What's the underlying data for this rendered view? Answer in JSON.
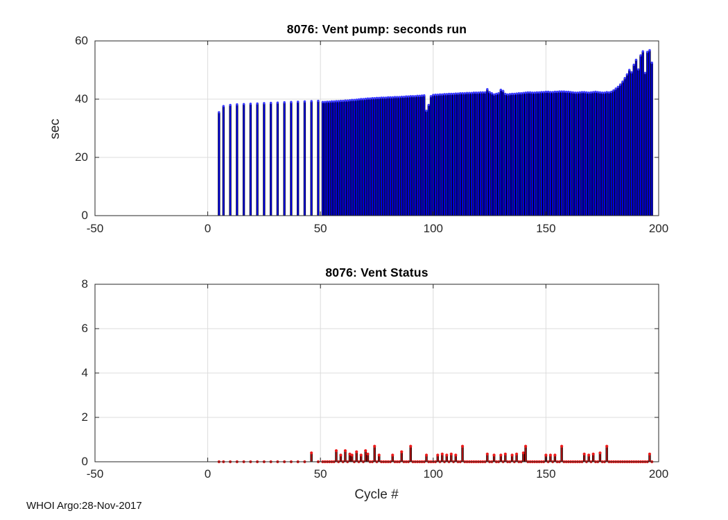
{
  "figure": {
    "background": "#ffffff",
    "footer": "WHOI Argo:28-Nov-2017"
  },
  "colors": {
    "axis": "#262626",
    "grid": "#dcdcdc",
    "tick_text": "#262626",
    "title_text": "#000000",
    "bar_blue": "#0000e0",
    "bar_edge": "#000000",
    "bar_marker_blue": "#3c3cff",
    "stem_fill": "#b01010",
    "stem_edge": "#000000",
    "stem_marker_red": "#ee1c1c"
  },
  "chart_data": [
    {
      "type": "bar",
      "title": "8076: Vent pump: seconds run",
      "xlabel": "",
      "ylabel": "sec",
      "xlim": [
        -50,
        200
      ],
      "ylim": [
        0,
        60
      ],
      "xticks": [
        -50,
        0,
        50,
        100,
        150,
        200
      ],
      "yticks": [
        0,
        20,
        40,
        60
      ],
      "grid": true,
      "legend": "none",
      "bar_color": "#0000e0",
      "bar_edge_color": "#000000",
      "marker_color": "#3c3cff",
      "x": [
        5,
        7,
        10,
        13,
        16,
        19,
        22,
        25,
        28,
        31,
        34,
        37,
        40,
        43,
        46,
        49,
        51,
        52,
        53,
        54,
        55,
        56,
        57,
        58,
        59,
        60,
        61,
        62,
        63,
        64,
        65,
        66,
        67,
        68,
        69,
        70,
        71,
        72,
        73,
        74,
        75,
        76,
        77,
        78,
        79,
        80,
        81,
        82,
        83,
        84,
        85,
        86,
        87,
        88,
        89,
        90,
        91,
        92,
        93,
        94,
        95,
        96,
        97,
        98,
        99,
        100,
        101,
        102,
        103,
        104,
        105,
        106,
        107,
        108,
        109,
        110,
        111,
        112,
        113,
        114,
        115,
        116,
        117,
        118,
        119,
        120,
        121,
        122,
        123,
        124,
        125,
        126,
        127,
        128,
        129,
        130,
        131,
        132,
        133,
        134,
        135,
        136,
        137,
        138,
        139,
        140,
        141,
        142,
        143,
        144,
        145,
        146,
        147,
        148,
        149,
        150,
        151,
        152,
        153,
        154,
        155,
        156,
        157,
        158,
        159,
        160,
        161,
        162,
        163,
        164,
        165,
        166,
        167,
        168,
        169,
        170,
        171,
        172,
        173,
        174,
        175,
        176,
        177,
        178,
        179,
        180,
        181,
        182,
        183,
        184,
        185,
        186,
        187,
        188,
        189,
        190,
        191,
        192,
        193,
        194,
        195,
        196,
        197
      ],
      "values": [
        35.5,
        37.6,
        38.0,
        38.2,
        38.3,
        38.4,
        38.5,
        38.6,
        38.7,
        38.8,
        38.9,
        39.0,
        39.1,
        39.2,
        39.3,
        39.4,
        39.0,
        39.0,
        39.1,
        39.1,
        39.2,
        39.2,
        39.3,
        39.3,
        39.4,
        39.4,
        39.5,
        39.5,
        39.6,
        39.7,
        39.7,
        39.8,
        39.9,
        40.0,
        40.0,
        40.1,
        40.2,
        40.2,
        40.3,
        40.3,
        40.4,
        40.4,
        40.5,
        40.5,
        40.5,
        40.6,
        40.6,
        40.6,
        40.7,
        40.7,
        40.7,
        40.8,
        40.8,
        40.9,
        40.9,
        41.0,
        41.0,
        41.0,
        41.1,
        41.1,
        41.2,
        41.3,
        36.0,
        38.0,
        41.0,
        41.4,
        41.5,
        41.5,
        41.6,
        41.6,
        41.7,
        41.7,
        41.8,
        41.8,
        41.8,
        41.9,
        41.9,
        42.0,
        42.0,
        42.0,
        42.1,
        42.1,
        42.1,
        42.2,
        42.2,
        42.2,
        42.3,
        42.3,
        42.3,
        43.4,
        42.4,
        42.0,
        41.6,
        41.8,
        42.0,
        43.2,
        42.8,
        41.8,
        41.6,
        41.7,
        41.8,
        41.8,
        41.9,
        42.0,
        42.0,
        42.1,
        42.2,
        42.3,
        42.3,
        42.2,
        42.2,
        42.3,
        42.3,
        42.4,
        42.4,
        42.5,
        42.5,
        42.4,
        42.4,
        42.5,
        42.5,
        42.6,
        42.6,
        42.6,
        42.5,
        42.5,
        42.4,
        42.3,
        42.2,
        42.2,
        42.3,
        42.4,
        42.4,
        42.3,
        42.2,
        42.3,
        42.4,
        42.5,
        42.4,
        42.3,
        42.2,
        42.2,
        42.4,
        42.3,
        42.5,
        43.0,
        43.6,
        44.2,
        45.0,
        46.0,
        47.2,
        48.5,
        50.0,
        49.2,
        51.8,
        53.5,
        50.2,
        55.0,
        56.4,
        49.0,
        56.2,
        56.8,
        52.5
      ]
    },
    {
      "type": "stem",
      "title": "8076: Vent Status",
      "xlabel": "Cycle #",
      "ylabel": "",
      "xlim": [
        -50,
        200
      ],
      "ylim": [
        0,
        8
      ],
      "xticks": [
        -50,
        0,
        50,
        100,
        150,
        200
      ],
      "yticks": [
        0,
        2,
        4,
        6,
        8
      ],
      "grid": true,
      "legend": "none",
      "stem_color": "#b01010",
      "stem_edge_color": "#000000",
      "marker_color": "#ee1c1c",
      "x": [
        5,
        7,
        10,
        13,
        16,
        19,
        22,
        25,
        28,
        31,
        34,
        37,
        40,
        43,
        46,
        49,
        51,
        52,
        53,
        54,
        55,
        56,
        57,
        58,
        59,
        60,
        61,
        62,
        63,
        64,
        65,
        66,
        67,
        68,
        69,
        70,
        71,
        72,
        73,
        74,
        75,
        76,
        77,
        78,
        79,
        80,
        81,
        82,
        83,
        84,
        85,
        86,
        87,
        88,
        89,
        90,
        91,
        92,
        93,
        94,
        95,
        96,
        97,
        98,
        99,
        100,
        101,
        102,
        103,
        104,
        105,
        106,
        107,
        108,
        109,
        110,
        111,
        112,
        113,
        114,
        115,
        116,
        117,
        118,
        119,
        120,
        121,
        122,
        123,
        124,
        125,
        126,
        127,
        128,
        129,
        130,
        131,
        132,
        133,
        134,
        135,
        136,
        137,
        138,
        139,
        140,
        141,
        142,
        143,
        144,
        145,
        146,
        147,
        148,
        149,
        150,
        151,
        152,
        153,
        154,
        155,
        156,
        157,
        158,
        159,
        160,
        161,
        162,
        163,
        164,
        165,
        166,
        167,
        168,
        169,
        170,
        171,
        172,
        173,
        174,
        175,
        176,
        177,
        178,
        179,
        180,
        181,
        182,
        183,
        184,
        185,
        186,
        187,
        188,
        189,
        190,
        191,
        192,
        193,
        194,
        195,
        196,
        197
      ],
      "values": [
        0,
        0,
        0,
        0,
        0,
        0,
        0,
        0,
        0,
        0,
        0,
        0,
        0,
        0,
        0.4,
        0,
        0,
        0,
        0,
        0,
        0,
        0,
        0.5,
        0,
        0.3,
        0,
        0.5,
        0,
        0.35,
        0.3,
        0,
        0.45,
        0,
        0.3,
        0,
        0.5,
        0.35,
        0,
        0,
        0.7,
        0,
        0.3,
        0,
        0,
        0,
        0,
        0,
        0.3,
        0,
        0,
        0,
        0.45,
        0,
        0,
        0,
        0.7,
        0,
        0,
        0,
        0,
        0,
        0,
        0.3,
        0,
        0,
        0,
        0,
        0.3,
        0,
        0.35,
        0,
        0.3,
        0,
        0.35,
        0,
        0.3,
        0,
        0,
        0.7,
        0,
        0,
        0,
        0,
        0,
        0,
        0,
        0,
        0,
        0,
        0.35,
        0,
        0,
        0.3,
        0,
        0,
        0.3,
        0,
        0.35,
        0,
        0,
        0.3,
        0,
        0.35,
        0,
        0,
        0.4,
        0.7,
        0,
        0,
        0,
        0,
        0,
        0,
        0,
        0,
        0.3,
        0,
        0.3,
        0,
        0.3,
        0,
        0,
        0.7,
        0,
        0,
        0,
        0,
        0,
        0,
        0,
        0,
        0,
        0.35,
        0,
        0.3,
        0,
        0.35,
        0,
        0,
        0.4,
        0,
        0,
        0.7,
        0,
        0,
        0,
        0,
        0,
        0,
        0,
        0,
        0,
        0,
        0,
        0,
        0,
        0,
        0,
        0,
        0,
        0,
        0.35,
        0
      ]
    }
  ]
}
